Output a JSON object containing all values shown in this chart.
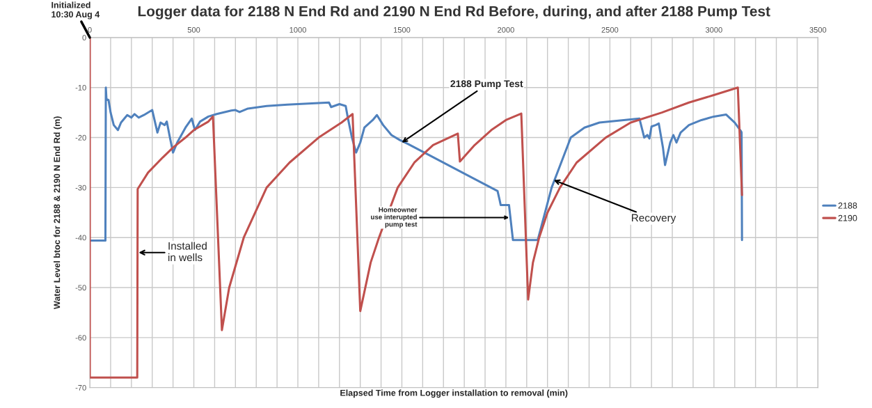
{
  "chart_data": {
    "type": "line",
    "title": "Logger data for 2188 N End Rd and 2190 N End Rd Before, during, and after 2188 Pump Test",
    "xlabel": "Elapsed Time from Logger installation to removal (min)",
    "ylabel": "Water Level btoc for 2188 & 2190 N End Rd (m)",
    "xlim": [
      0,
      3500
    ],
    "ylim": [
      -70,
      0
    ],
    "xticks": [
      0,
      {
        "value": 100,
        "label": null
      },
      {
        "value": 200,
        "label": null
      },
      {
        "value": 300,
        "label": null
      },
      {
        "value": 400,
        "label": null
      },
      500,
      {
        "value": 600,
        "label": null
      },
      {
        "value": 700,
        "label": null
      },
      {
        "value": 800,
        "label": null
      },
      {
        "value": 900,
        "label": null
      },
      1000,
      {
        "value": 1100,
        "label": null
      },
      {
        "value": 1200,
        "label": null
      },
      {
        "value": 1300,
        "label": null
      },
      {
        "value": 1400,
        "label": null
      },
      1500,
      {
        "value": 1600,
        "label": null
      },
      {
        "value": 1700,
        "label": null
      },
      {
        "value": 1800,
        "label": null
      },
      {
        "value": 1900,
        "label": null
      },
      2000,
      {
        "value": 2100,
        "label": null
      },
      {
        "value": 2200,
        "label": null
      },
      {
        "value": 2300,
        "label": null
      },
      {
        "value": 2400,
        "label": null
      },
      2500,
      {
        "value": 2600,
        "label": null
      },
      {
        "value": 2700,
        "label": null
      },
      {
        "value": 2800,
        "label": null
      },
      {
        "value": 2900,
        "label": null
      },
      3000,
      {
        "value": 3100,
        "label": null
      },
      {
        "value": 3200,
        "label": null
      },
      {
        "value": 3300,
        "label": null
      },
      {
        "value": 3400,
        "label": null
      },
      3500
    ],
    "yticks": [
      0,
      -10,
      -20,
      -30,
      -40,
      -50,
      -60,
      -70
    ],
    "grid": true,
    "legend": "right",
    "series": [
      {
        "name": "2188",
        "color": "#4f81bd",
        "x": [
          0,
          75,
          77,
          80,
          90,
          100,
          115,
          135,
          150,
          180,
          200,
          215,
          235,
          260,
          300,
          325,
          340,
          360,
          370,
          385,
          400,
          420,
          460,
          490,
          505,
          530,
          570,
          610,
          680,
          700,
          720,
          760,
          850,
          950,
          1050,
          1150,
          1160,
          1200,
          1230,
          1240,
          1260,
          1280,
          1300,
          1320,
          1360,
          1380,
          1410,
          1450,
          1490,
          1530,
          1960,
          1970,
          1975,
          2015,
          2034,
          2153,
          2220,
          2312,
          2378,
          2450,
          2642,
          2665,
          2680,
          2690,
          2700,
          2720,
          2735,
          2755,
          2765,
          2790,
          2805,
          2820,
          2840,
          2880,
          2940,
          3000,
          3059,
          3100,
          3131,
          3133,
          3135
        ],
        "values": [
          -40.6,
          -40.6,
          -10,
          -12.3,
          -12.5,
          -15,
          -17.5,
          -18.5,
          -17,
          -15.5,
          -16,
          -15.3,
          -16,
          -15.5,
          -14.5,
          -19,
          -17,
          -17.5,
          -16.8,
          -20,
          -23,
          -21,
          -18,
          -16.2,
          -18.5,
          -16.8,
          -15.8,
          -15.3,
          -14.6,
          -14.5,
          -14.9,
          -14.2,
          -13.7,
          -13.4,
          -13.2,
          -13,
          -13.9,
          -13.3,
          -13.7,
          -16,
          -20,
          -23,
          -21,
          -18,
          -16.5,
          -15.5,
          -17.5,
          -19.5,
          -20.5,
          -21.3,
          -30.7,
          -32.5,
          -33.5,
          -33.5,
          -40.5,
          -40.5,
          -30,
          -20,
          -18,
          -17,
          -16.2,
          -20,
          -19.5,
          -20.2,
          -17.8,
          -17.5,
          -17.2,
          -22,
          -25.5,
          -21,
          -19.5,
          -21,
          -19,
          -17.5,
          -16.5,
          -15.8,
          -15.4,
          -17,
          -18.8,
          -19,
          -40.5
        ]
      },
      {
        "name": "2190",
        "color": "#c0504d",
        "x": [
          0,
          0,
          228,
          230,
          280,
          350,
          400,
          460,
          500,
          570,
          592,
          635,
          670,
          740,
          850,
          960,
          1100,
          1210,
          1263,
          1300,
          1350,
          1390,
          1480,
          1560,
          1650,
          1769,
          1779,
          1850,
          1930,
          2000,
          2074,
          2107,
          2130,
          2160,
          2200,
          2260,
          2340,
          2480,
          2600,
          2750,
          2880,
          3000,
          3115,
          3135
        ],
        "values": [
          0,
          -68,
          -68,
          -30.3,
          -27,
          -24,
          -22,
          -20,
          -18.5,
          -16.8,
          -15.8,
          -58.5,
          -50,
          -40,
          -30,
          -25,
          -20,
          -17,
          -15.3,
          -54.7,
          -45,
          -40,
          -30,
          -25,
          -21.5,
          -19.2,
          -24.8,
          -21.5,
          -18.5,
          -16.5,
          -15.2,
          -52.4,
          -45,
          -40,
          -35,
          -30,
          -25,
          -20,
          -17,
          -15,
          -13,
          -11.5,
          -10,
          -31.5
        ]
      }
    ],
    "annotations": [
      {
        "text": "Initialized\n10:30 Aug 4",
        "x": 0,
        "y": 0
      },
      {
        "text": "2188 Pump Test",
        "x": 1500,
        "y": -21
      },
      {
        "text": "Installed\nin wells",
        "x": 235,
        "y": -43
      },
      {
        "text": "Homeowner\nuse interupted\npump test",
        "x": 2015,
        "y": -36
      },
      {
        "text": "Recovery",
        "x": 2230,
        "y": -28.5
      }
    ]
  }
}
